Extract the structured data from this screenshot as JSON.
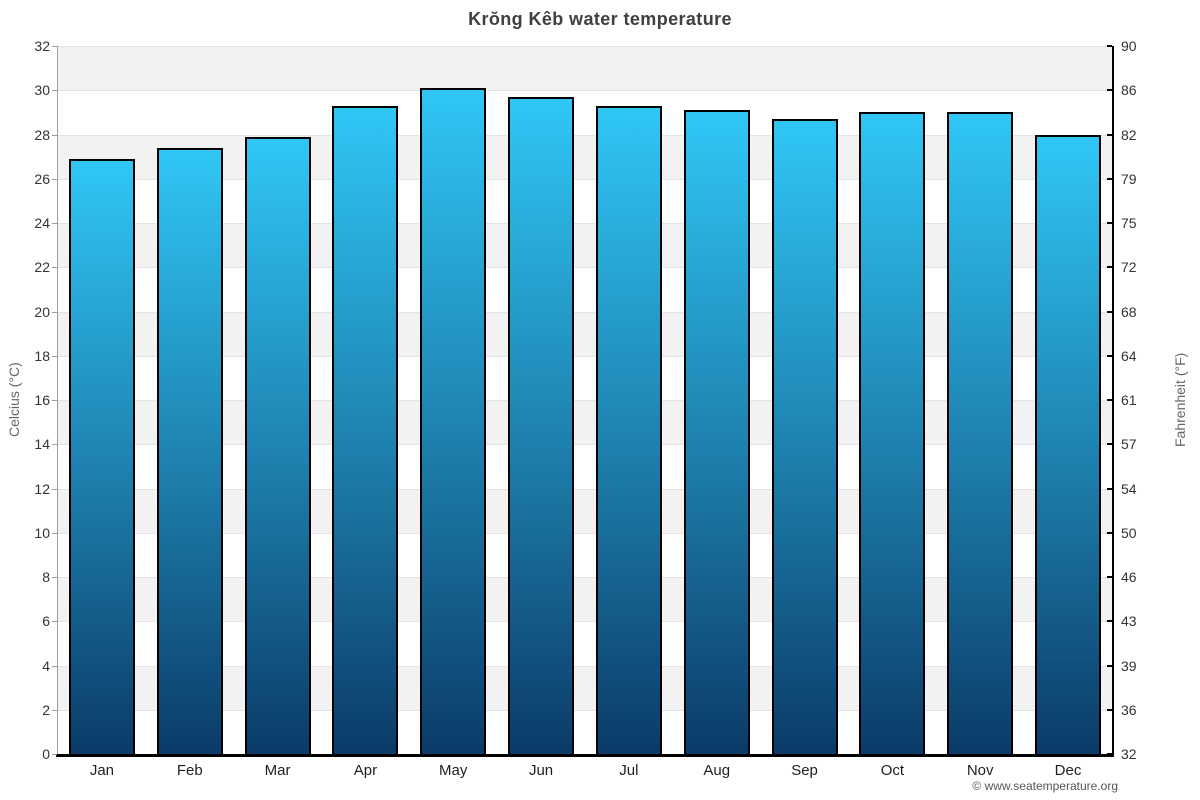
{
  "chart_data": {
    "type": "bar",
    "title": "Krŏng Kêb water temperature",
    "categories": [
      "Jan",
      "Feb",
      "Mar",
      "Apr",
      "May",
      "Jun",
      "Jul",
      "Aug",
      "Sep",
      "Oct",
      "Nov",
      "Dec"
    ],
    "values": [
      26.9,
      27.4,
      27.9,
      29.3,
      30.1,
      29.7,
      29.3,
      29.1,
      28.7,
      29.0,
      29.0,
      28.0
    ],
    "ylabel_left": "Celcius (°C)",
    "ylabel_right": "Fahrenheit (°F)",
    "ylim": [
      0,
      32
    ],
    "y_ticks_celsius": [
      32,
      30,
      28,
      26,
      24,
      22,
      20,
      18,
      16,
      14,
      12,
      10,
      8,
      6,
      4,
      2,
      0
    ],
    "y_ticks_fahrenheit": [
      90,
      86,
      82,
      79,
      75,
      72,
      68,
      64,
      61,
      57,
      54,
      50,
      46,
      43,
      39,
      36,
      32
    ],
    "grid": "horizontal-bands-every-2-degrees",
    "legend": "none",
    "footer": "© www.seatemperature.org",
    "colors": {
      "bar_gradient_top": "#30c7f5",
      "bar_gradient_mid": "#1e81af",
      "bar_gradient_bottom": "#0b3b68",
      "bar_border": "#000000",
      "band_gray": "#f2f2f2",
      "band_white": "#ffffff",
      "gridline": "#e4e4e4",
      "left_axis": "#9d9d9d",
      "right_axis": "#000000",
      "baseline": "#000000",
      "title_text": "#404040",
      "tick_text": "#333333",
      "axis_title_text": "#666666",
      "footer_text": "#555555"
    }
  }
}
